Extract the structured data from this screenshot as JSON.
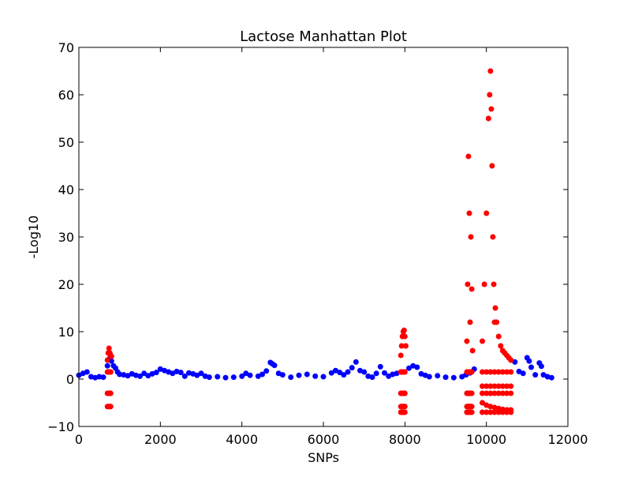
{
  "chart_data": {
    "type": "scatter",
    "title": "Lactose Manhattan Plot",
    "xlabel": "SNPs",
    "ylabel": "-Log10",
    "xlim": [
      0,
      12000
    ],
    "ylim": [
      -10,
      70
    ],
    "xticks": [
      0,
      2000,
      4000,
      6000,
      8000,
      10000,
      12000
    ],
    "yticks": [
      -10,
      0,
      10,
      20,
      30,
      40,
      50,
      60,
      70
    ],
    "grid": false,
    "legend": "none",
    "colors": {
      "blue": "#0000ff",
      "red": "#ff0000"
    },
    "series": [
      {
        "color": "blue",
        "x": [
          0,
          100,
          200,
          300,
          400,
          500,
          600,
          700,
          750,
          800,
          850,
          900,
          950,
          1000,
          1100,
          1200,
          1300,
          1400,
          1500,
          1600,
          1700,
          1800,
          1900,
          2000,
          2100,
          2200,
          2300,
          2400,
          2500,
          2600,
          2700,
          2800,
          2900,
          3000,
          3100,
          3200,
          3400,
          3600,
          3800,
          4000,
          4100,
          4200,
          4400,
          4500,
          4600,
          4700,
          4750,
          4800,
          4900,
          5000,
          5200,
          5400,
          5600,
          5800,
          6000,
          6200,
          6300,
          6400,
          6500,
          6600,
          6700,
          6800,
          6900,
          7000,
          7100,
          7200,
          7300,
          7400,
          7500,
          7600,
          7700,
          7800,
          8100,
          8200,
          8300,
          8400,
          8500,
          8600,
          8800,
          9000,
          9200,
          9400,
          9500,
          9600,
          9700,
          10700,
          10800,
          10900,
          11000,
          11050,
          11100,
          11200,
          11300,
          11350,
          11400,
          11500,
          11600
        ],
        "y": [
          0.8,
          1.2,
          1.5,
          0.5,
          0.3,
          0.5,
          0.4,
          2.8,
          4.3,
          3.8,
          2.8,
          2.3,
          1.5,
          1.0,
          0.9,
          0.7,
          1.1,
          0.8,
          0.6,
          1.2,
          0.7,
          1.1,
          1.4,
          2.1,
          1.8,
          1.5,
          1.2,
          1.6,
          1.4,
          0.6,
          1.3,
          1.1,
          0.8,
          1.2,
          0.6,
          0.4,
          0.5,
          0.3,
          0.4,
          0.6,
          1.2,
          0.8,
          0.6,
          1.0,
          1.7,
          3.5,
          3.2,
          2.9,
          1.2,
          0.9,
          0.4,
          0.8,
          1.0,
          0.6,
          0.5,
          1.3,
          1.8,
          1.4,
          0.9,
          1.5,
          2.4,
          3.6,
          1.8,
          1.5,
          0.6,
          0.4,
          1.2,
          2.6,
          1.3,
          0.6,
          1.0,
          1.2,
          2.3,
          2.8,
          2.5,
          1.1,
          0.8,
          0.5,
          0.7,
          0.4,
          0.3,
          0.5,
          0.9,
          1.3,
          2.1,
          3.6,
          1.6,
          1.2,
          4.5,
          3.8,
          2.5,
          0.9,
          3.4,
          2.7,
          0.9,
          0.5,
          0.3
        ]
      },
      {
        "color": "red",
        "x": [
          700,
          720,
          740,
          760,
          780,
          800,
          700,
          720,
          740,
          760,
          780,
          700,
          720,
          740,
          760,
          780,
          700,
          720,
          740,
          760,
          780,
          7900,
          7920,
          7940,
          7960,
          7980,
          8000,
          8020,
          7900,
          7920,
          7940,
          7960,
          7980,
          8000,
          7900,
          7920,
          7940,
          7960,
          7980,
          8000,
          7900,
          7920,
          7940,
          7960,
          7980,
          8000,
          7900,
          7920,
          7940,
          7960,
          7980,
          8000,
          9520,
          9540,
          9560,
          9580,
          9600,
          9620,
          9640,
          9660,
          9520,
          9540,
          9560,
          9580,
          9600,
          9620,
          9640,
          9520,
          9540,
          9560,
          9580,
          9600,
          9620,
          9640,
          9520,
          9540,
          9560,
          9580,
          9600,
          9620,
          9640,
          9520,
          9540,
          9560,
          9580,
          9600,
          9620,
          9640,
          9900,
          9950,
          10000,
          10050,
          10080,
          10100,
          10120,
          10140,
          10160,
          10180,
          10200,
          10220,
          10250,
          10300,
          10350,
          10400,
          10450,
          10500,
          10550,
          10600,
          9900,
          10000,
          10100,
          10200,
          10300,
          10400,
          10500,
          10600,
          9900,
          10000,
          10100,
          10200,
          10300,
          10400,
          10500,
          10600,
          9900,
          10000,
          10100,
          10200,
          10300,
          10400,
          10500,
          10600,
          9900,
          10000,
          10100,
          10200,
          10300,
          10400,
          10500,
          10600,
          9900,
          10000,
          10100,
          10200,
          10300,
          10400,
          10500,
          10600
        ],
        "y": [
          4.0,
          5.5,
          6.5,
          5.5,
          5.0,
          4.8,
          1.5,
          1.5,
          1.5,
          1.5,
          1.5,
          -3.0,
          -3.0,
          -3.0,
          -3.0,
          -3.0,
          -5.8,
          -5.8,
          -5.8,
          -5.8,
          -5.8,
          5.0,
          7.0,
          9.0,
          10.0,
          10.3,
          9.0,
          7.0,
          1.5,
          1.5,
          1.5,
          1.5,
          1.5,
          1.5,
          -3.0,
          -3.0,
          -3.0,
          -3.0,
          -3.0,
          -3.0,
          -5.8,
          -5.8,
          -5.8,
          -5.8,
          -5.8,
          -5.8,
          -7.0,
          -7.0,
          -7.0,
          -7.0,
          -7.0,
          -7.0,
          8.0,
          20.0,
          47.0,
          35.0,
          12.0,
          30.0,
          19.0,
          6.0,
          1.5,
          1.5,
          1.5,
          1.5,
          1.5,
          1.5,
          1.5,
          -3.0,
          -3.0,
          -3.0,
          -3.0,
          -3.0,
          -3.0,
          -3.0,
          -5.8,
          -5.8,
          -5.8,
          -5.8,
          -5.8,
          -5.8,
          -5.8,
          -7.0,
          -7.0,
          -7.0,
          -7.0,
          -7.0,
          -7.0,
          -7.0,
          8.0,
          20.0,
          35.0,
          55.0,
          60.0,
          65.0,
          57.0,
          45.0,
          30.0,
          20.0,
          12.0,
          15.0,
          12.0,
          9.0,
          7.0,
          6.0,
          5.5,
          5.0,
          4.5,
          4.0,
          1.5,
          1.5,
          1.5,
          1.5,
          1.5,
          1.5,
          1.5,
          1.5,
          -1.5,
          -1.5,
          -1.5,
          -1.5,
          -1.5,
          -1.5,
          -1.5,
          -1.5,
          -3.0,
          -3.0,
          -3.0,
          -3.0,
          -3.0,
          -3.0,
          -3.0,
          -3.0,
          -5.0,
          -5.5,
          -5.8,
          -6.0,
          -6.2,
          -6.4,
          -6.5,
          -6.5,
          -7.0,
          -7.0,
          -7.0,
          -7.0,
          -7.0,
          -7.0,
          -7.0,
          -7.0
        ]
      }
    ]
  }
}
